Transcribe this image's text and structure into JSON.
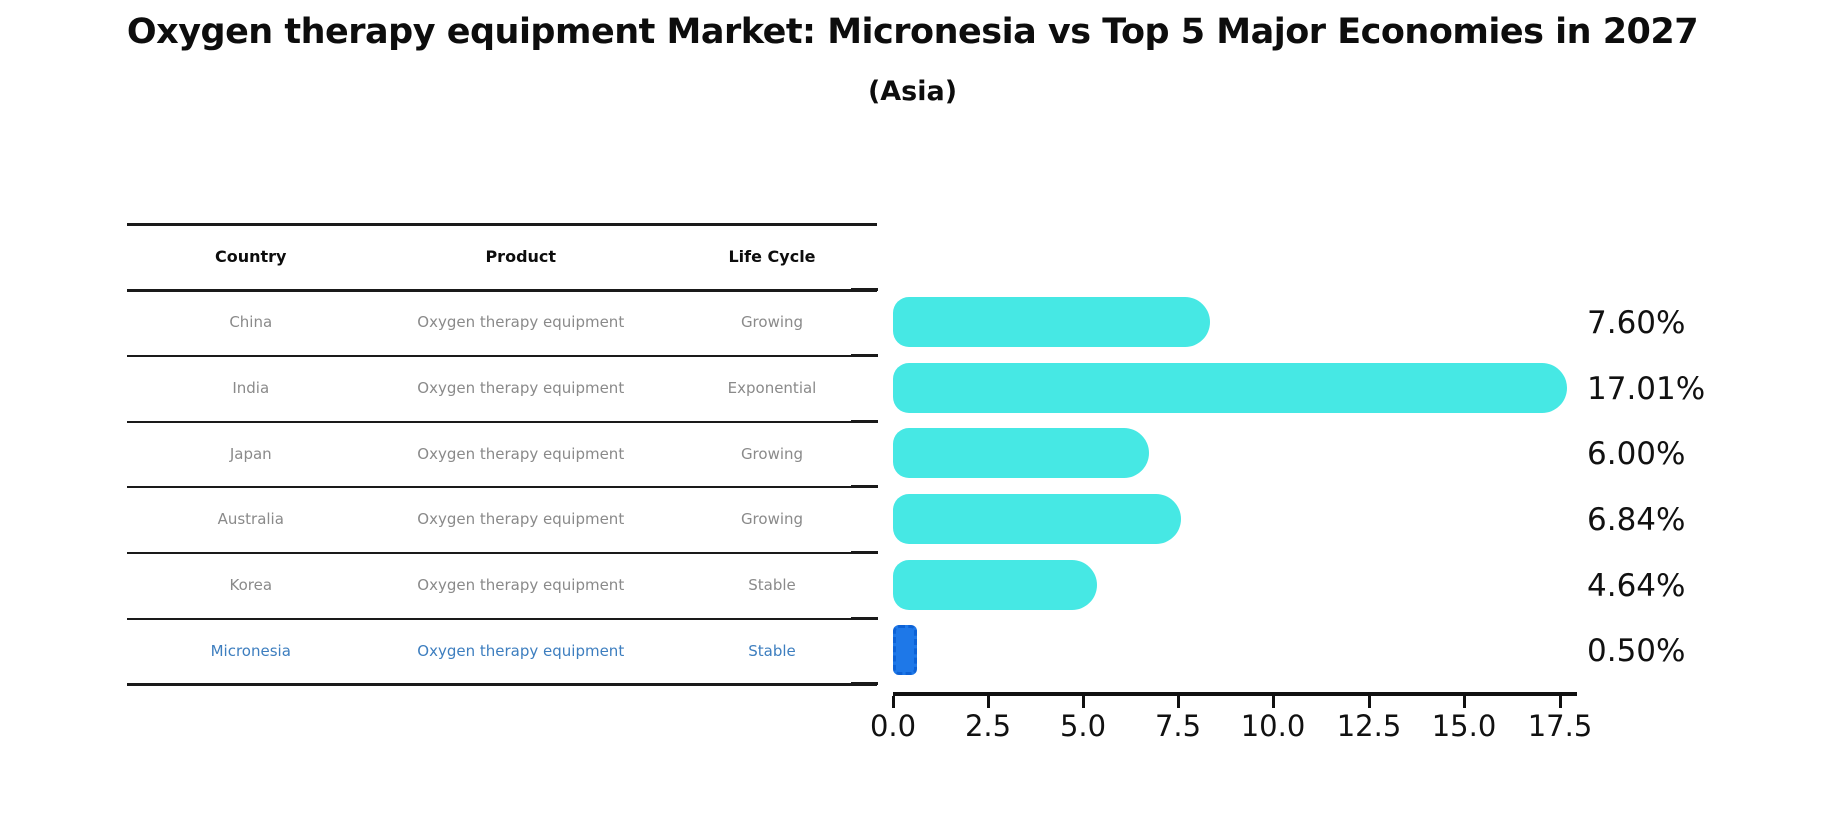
{
  "title": "Oxygen therapy equipment Market: Micronesia vs Top 5 Major Economies in 2027",
  "subtitle": "(Asia)",
  "table": {
    "headers": [
      "Country",
      "Product",
      "Life Cycle"
    ],
    "rows": [
      {
        "country": "China",
        "product": "Oxygen therapy equipment",
        "life_cycle": "Growing"
      },
      {
        "country": "India",
        "product": "Oxygen therapy equipment",
        "life_cycle": "Exponential"
      },
      {
        "country": "Japan",
        "product": "Oxygen therapy equipment",
        "life_cycle": "Growing"
      },
      {
        "country": "Australia",
        "product": "Oxygen therapy equipment",
        "life_cycle": "Growing"
      },
      {
        "country": "Korea",
        "product": "Oxygen therapy equipment",
        "life_cycle": "Stable"
      },
      {
        "country": "Micronesia",
        "product": "Oxygen therapy equipment",
        "life_cycle": "Stable"
      }
    ]
  },
  "chart_data": {
    "type": "bar",
    "orientation": "horizontal",
    "title": "Oxygen therapy equipment Market: Micronesia vs Top 5 Major Economies in 2027 (Asia)",
    "categories": [
      "China",
      "India",
      "Japan",
      "Australia",
      "Korea",
      "Micronesia"
    ],
    "values": [
      7.6,
      17.01,
      6.0,
      6.84,
      4.64,
      0.5
    ],
    "value_labels": [
      "7.60%",
      "17.01%",
      "6.00%",
      "6.84%",
      "4.64%",
      "0.50%"
    ],
    "xlabel": "",
    "ylabel": "",
    "xlim": [
      0,
      17.5
    ],
    "x_tick_labels": [
      "0.0",
      "2.5",
      "5.0",
      "7.5",
      "10.0",
      "12.5",
      "15.0",
      "17.5"
    ],
    "grid": false,
    "legend": false,
    "bar_color": "#46e8e4",
    "highlight_bar_color": "#1e78e8",
    "highlight_index": 5,
    "highlight_text_color": "#3d7ebf",
    "row_text_color": "#8a8a8a"
  }
}
